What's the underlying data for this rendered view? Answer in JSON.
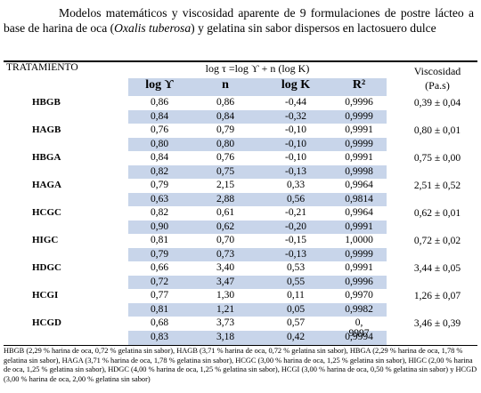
{
  "caption": {
    "before_italic": "Modelos matemáticos y viscosidad aparente de 9 formulaciones de postre lácteo a base de harina de oca (",
    "italic": "Oxalis tuberosa",
    "after_italic": ") y gelatina sin sabor dispersos en lactosuero dulce"
  },
  "table": {
    "header_treatment": "TRATAMIENTO",
    "header_equation": "log τ =log ϒ + n (log K)",
    "header_viscosity": [
      "Viscosidad",
      "(Pa.s)"
    ],
    "columns": [
      "log ϒ",
      "n",
      "log K",
      "R²"
    ],
    "rows": [
      {
        "label": "HBGB",
        "a": [
          "0,86",
          "0,86",
          "-0,44",
          "0,9996"
        ],
        "b": [
          "0,84",
          "0,84",
          "-0,32",
          "0,9999"
        ],
        "viscosity": "0,39 ± 0,04"
      },
      {
        "label": "HAGB",
        "a": [
          "0,76",
          "0,79",
          "-0,10",
          "0,9991"
        ],
        "b": [
          "0,80",
          "0,80",
          "-0,10",
          "0,9999"
        ],
        "viscosity": "0,80 ± 0,01"
      },
      {
        "label": "HBGA",
        "a": [
          "0,84",
          "0,76",
          "-0,10",
          "0,9991"
        ],
        "b": [
          "0,82",
          "0,75",
          "-0,13",
          "0,9998"
        ],
        "viscosity": "0,75 ± 0,00"
      },
      {
        "label": "HAGA",
        "a": [
          "0,79",
          "2,15",
          "0,33",
          "0,9964"
        ],
        "b": [
          "0,63",
          "2,88",
          "0,56",
          "0,9814"
        ],
        "viscosity": "2,51 ± 0,52"
      },
      {
        "label": "HCGC",
        "a": [
          "0,82",
          "0,61",
          "-0,21",
          "0,9964"
        ],
        "b": [
          "0,90",
          "0,62",
          "-0,20",
          "0,9991"
        ],
        "viscosity": "0,62 ± 0,01"
      },
      {
        "label": "HIGC",
        "a": [
          "0,81",
          "0,70",
          "-0,15",
          "1,0000"
        ],
        "b": [
          "0,79",
          "0,73",
          "-0,13",
          "0,9999"
        ],
        "viscosity": "0,72 ± 0,02"
      },
      {
        "label": "HDGC",
        "a": [
          "0,66",
          "3,40",
          "0,53",
          "0,9991"
        ],
        "b": [
          "0,72",
          "3,47",
          "0,55",
          "0,9996"
        ],
        "viscosity": "3,44 ± 0,05"
      },
      {
        "label": "HCGI",
        "a": [
          "0,77",
          "1,30",
          "0,11",
          "0,9970"
        ],
        "b": [
          "0,81",
          "1,21",
          "0,05",
          "0,9982"
        ],
        "viscosity": "1,26 ± 0,07"
      },
      {
        "label": "HCGD",
        "a": [
          "0,68",
          "3,73",
          "0,57",
          ""
        ],
        "b": [
          "0,83",
          "3,18",
          "0,42",
          "0,9994"
        ],
        "viscosity": "3,46 ± 0,39",
        "r2_split": [
          "0,",
          "9997"
        ]
      }
    ]
  },
  "footnote": "HBGB (2,29 % harina de oca, 0,72 % gelatina sin sabor), HAGB (3,71 % harina de oca, 0,72 % gelatina sin sabor), HBGA (2,29 % harina de oca, 1,78 % gelatina sin sabor), HAGA (3,71 % harina de oca, 1,78 % gelatina sin sabor), HCGC (3,00 % harina de oca, 1,25 % gelatina sin sabor), HIGC (2,00 % harina de oca, 1,25 % gelatina sin sabor), HDGC (4,00 % harina de oca, 1,25 % gelatina sin sabor), HCGI (3,00 % harina de oca, 0,50 % gelatina sin sabor) y HCGD (3,00 % harina de oca, 2,00 % gelatina sin sabor)"
}
